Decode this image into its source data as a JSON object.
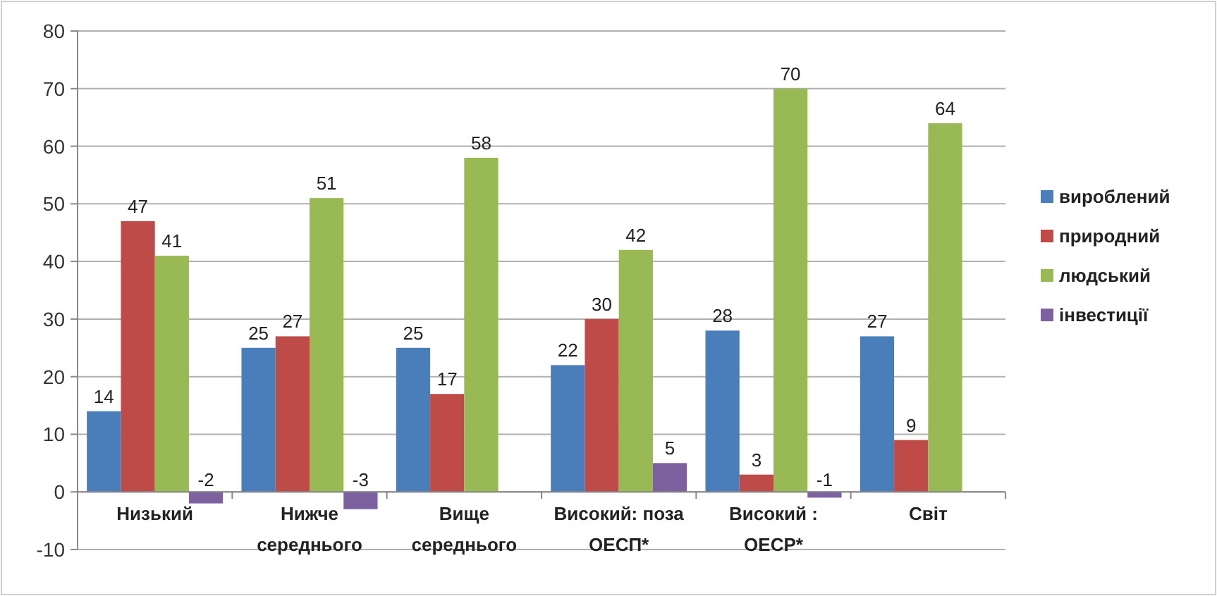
{
  "chart_data": {
    "type": "bar",
    "categories": [
      "Низький",
      "Нижче середнього",
      "Вище середнього",
      "Високий: поза ОЕСП*",
      "Високий : ОЕСР*",
      "Світ"
    ],
    "series": [
      {
        "name": "вироблений",
        "color": "#4a7ebb",
        "values": [
          14,
          25,
          25,
          22,
          28,
          27
        ]
      },
      {
        "name": "природний",
        "color": "#be4b48",
        "values": [
          47,
          27,
          17,
          30,
          3,
          9
        ]
      },
      {
        "name": "людський",
        "color": "#98b954",
        "values": [
          41,
          51,
          58,
          42,
          70,
          64
        ]
      },
      {
        "name": "інвестиції",
        "color": "#7d60a0",
        "values": [
          -2,
          -3,
          null,
          5,
          -1,
          null
        ]
      }
    ],
    "ylim": [
      -10,
      80
    ],
    "yticks": [
      -10,
      0,
      10,
      20,
      30,
      40,
      50,
      60,
      70,
      80
    ],
    "grid": "y",
    "legend": "right",
    "data_labels": true
  }
}
